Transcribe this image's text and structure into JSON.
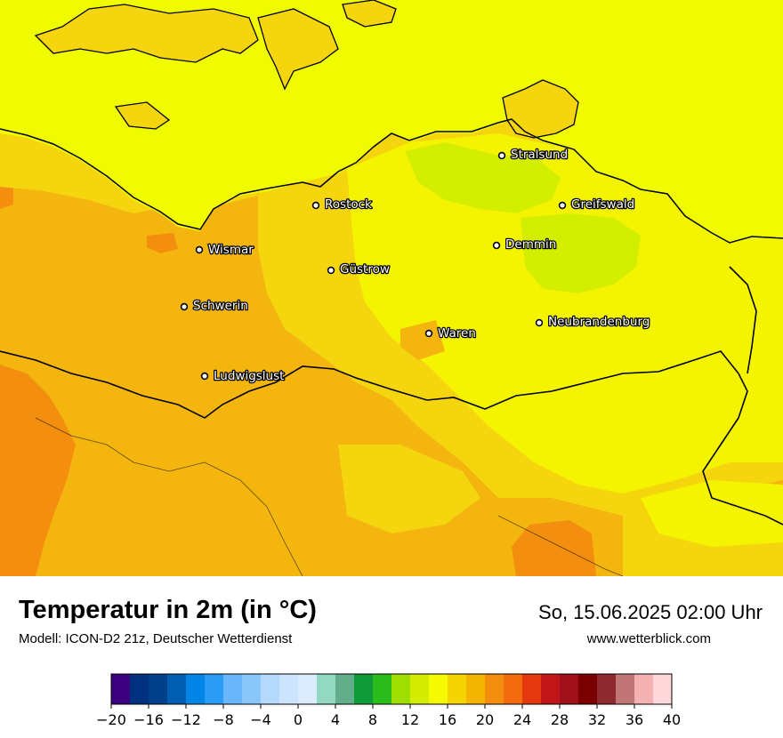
{
  "footer": {
    "title": "Temperatur in 2m (in °C)",
    "model": "Modell: ICON-D2 21z, Deutscher Wetterdienst",
    "datetime": "So, 15.06.2025 02:00 Uhr",
    "website": "www.wetterblick.com"
  },
  "cities": [
    {
      "name": "Stralsund"
    },
    {
      "name": "Greifswald"
    },
    {
      "name": "Rostock"
    },
    {
      "name": "Demmin"
    },
    {
      "name": "Wismar"
    },
    {
      "name": "Güstrow"
    },
    {
      "name": "Schwerin"
    },
    {
      "name": "Neubrandenburg"
    },
    {
      "name": "Waren"
    },
    {
      "name": "Ludwigslust"
    }
  ],
  "legend": {
    "min": -20,
    "max": 40,
    "step": 2,
    "tick_labels": [
      "−20",
      "−16",
      "−12",
      "−8",
      "−4",
      "0",
      "4",
      "8",
      "12",
      "16",
      "20",
      "24",
      "28",
      "32",
      "36",
      "40"
    ],
    "colors": [
      "#3a007f",
      "#00317f",
      "#00408a",
      "#005eb0",
      "#0084e6",
      "#2a9cf5",
      "#6ab6fa",
      "#89c6fa",
      "#b4d9fc",
      "#cce4fd",
      "#dcecfd",
      "#93d8c0",
      "#62ad8a",
      "#0f9b37",
      "#2bbd1b",
      "#a0de00",
      "#d4ec00",
      "#f4fb00",
      "#f4d500",
      "#f4b500",
      "#f48e0e",
      "#f46a0e",
      "#e4390e",
      "#c0161a",
      "#a0101a",
      "#7a0000",
      "#8c2a2f",
      "#c07676",
      "#f4b2b2",
      "#fed8da"
    ]
  },
  "map_colors": {
    "sea": "#f1fb00",
    "base": "#f4b50e",
    "warm": "#f48e0e",
    "mid": "#f4d50e",
    "cool": "#d4ee00",
    "border": "#000000"
  }
}
